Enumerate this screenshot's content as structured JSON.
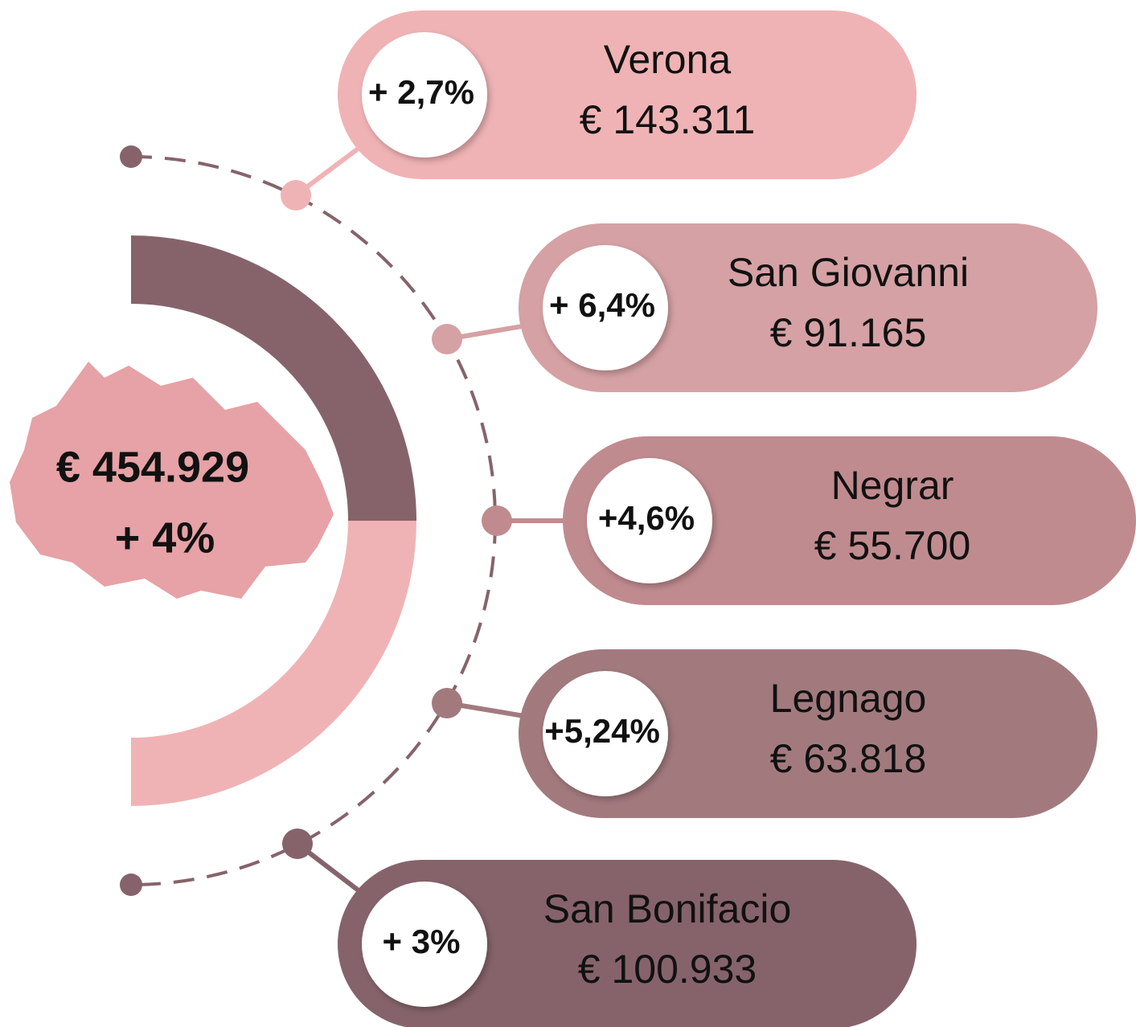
{
  "total": {
    "amount": "€ 454.929",
    "change": "+ 4%"
  },
  "locations": [
    {
      "name": "Verona",
      "amount": "€ 143.311",
      "change": "+ 2,7%"
    },
    {
      "name": "San Giovanni",
      "amount": "€ 91.165",
      "change": "+ 6,4%"
    },
    {
      "name": "Negrar",
      "amount": "€ 55.700",
      "change": "+4,6%"
    },
    {
      "name": "Legnago",
      "amount": "€ 63.818",
      "change": "+5,24%"
    },
    {
      "name": "San Bonifacio",
      "amount": "€ 100.933",
      "change": "+ 3%"
    }
  ]
}
